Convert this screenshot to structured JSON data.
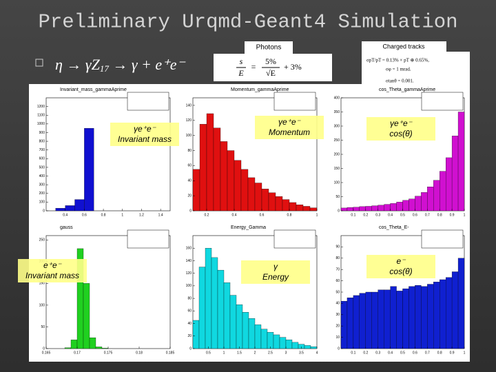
{
  "title": "Preliminary Urqmd-Geant4 Simulation",
  "bullet": {
    "formula": "η → γZ",
    "subscript": "17",
    "rest": " → γ + e⁺e⁻"
  },
  "photons": {
    "box": "Photons",
    "lhs_num": "s",
    "lhs_den": "E",
    "eq": "=",
    "t1_num": "5%",
    "t1_den": "√E",
    "t2": "+ 3%"
  },
  "charged": {
    "box": "Charged tracks",
    "lines": [
      "σpT/pT = 0.13% × pT ⊕ 0.65%,",
      "σφ = 1 mrad.",
      "σtanθ = 0.001."
    ]
  },
  "panels": [
    {
      "title": "Invariant_mass_gammaAprime",
      "color": "#1010d0",
      "label": [
        "γe⁺e⁻",
        "Invariant mass"
      ],
      "bins": [
        0.2,
        0.3,
        0.4,
        0.5,
        0.6,
        0.7,
        0.8,
        0.9,
        1.0,
        1.1,
        1.2,
        1.3,
        1.4,
        1.5
      ],
      "counts": [
        0,
        30,
        60,
        130,
        950,
        0,
        0,
        0,
        0,
        0,
        0,
        0,
        0
      ],
      "xticks": [
        0.4,
        0.6,
        0.8,
        1,
        1.2,
        1.4
      ],
      "ylim": [
        0,
        1300
      ],
      "yticks": [
        0,
        100,
        200,
        300,
        400,
        500,
        600,
        700,
        800,
        900,
        1000,
        1100,
        1200
      ]
    },
    {
      "title": "Momentum_gammaAprime",
      "color": "#e01010",
      "label": [
        "γe⁺e⁻",
        "Momentum"
      ],
      "bins": [
        0.1,
        0.15,
        0.2,
        0.25,
        0.3,
        0.35,
        0.4,
        0.45,
        0.5,
        0.55,
        0.6,
        0.65,
        0.7,
        0.75,
        0.8,
        0.85,
        0.9,
        0.95,
        1.0
      ],
      "counts": [
        55,
        115,
        129,
        110,
        92,
        80,
        67,
        55,
        44,
        37,
        29,
        24,
        19,
        15,
        11,
        8,
        6,
        4
      ],
      "xticks": [
        0.2,
        0.4,
        0.6,
        0.8,
        1
      ],
      "ylim": [
        0,
        150
      ],
      "yticks": [
        0,
        20,
        40,
        60,
        80,
        100,
        120,
        140
      ]
    },
    {
      "title": "cos_Theta_gammaAprime",
      "color": "#d010d0",
      "label": [
        "γe⁺e⁻",
        "cos(θ)"
      ],
      "bins": [
        0,
        0.05,
        0.1,
        0.15,
        0.2,
        0.25,
        0.3,
        0.35,
        0.4,
        0.45,
        0.5,
        0.55,
        0.6,
        0.65,
        0.7,
        0.75,
        0.8,
        0.85,
        0.9,
        0.95,
        1.0
      ],
      "counts": [
        10,
        12,
        13,
        15,
        16,
        18,
        20,
        23,
        26,
        31,
        37,
        42,
        52,
        65,
        85,
        108,
        140,
        188,
        265,
        350
      ],
      "xticks": [
        0.1,
        0.2,
        0.3,
        0.4,
        0.5,
        0.6,
        0.7,
        0.8,
        0.9,
        1
      ],
      "ylim": [
        0,
        400
      ],
      "yticks": [
        0,
        50,
        100,
        150,
        200,
        250,
        300,
        350,
        400
      ]
    },
    {
      "title": "gauss",
      "color": "#20d020",
      "label": [
        "e⁺e⁻",
        "Invariant mass"
      ],
      "bins": [
        0.165,
        0.166,
        0.167,
        0.168,
        0.169,
        0.17,
        0.171,
        0.172,
        0.173,
        0.174,
        0.175,
        0.176,
        0.177,
        0.178,
        0.179,
        0.18,
        0.181,
        0.182,
        0.183,
        0.184,
        0.185
      ],
      "counts": [
        0,
        0,
        0,
        2,
        20,
        230,
        150,
        25,
        4,
        1,
        0,
        0,
        0,
        0,
        0,
        0,
        0,
        0,
        0,
        0
      ],
      "xticks": [
        0.165,
        0.17,
        0.175,
        0.18,
        0.185
      ],
      "ylim": [
        0,
        260
      ],
      "yticks": [
        0,
        50,
        100,
        150,
        200,
        250
      ]
    },
    {
      "title": "Energy_Gamma",
      "color": "#10d8e0",
      "label": [
        "γ",
        "Energy"
      ],
      "bins": [
        0,
        0.2,
        0.4,
        0.6,
        0.8,
        1,
        1.2,
        1.4,
        1.6,
        1.8,
        2,
        2.2,
        2.4,
        2.6,
        2.8,
        3,
        3.2,
        3.4,
        3.6,
        3.8,
        4
      ],
      "counts": [
        45,
        130,
        160,
        145,
        125,
        105,
        85,
        70,
        58,
        48,
        38,
        31,
        26,
        22,
        18,
        14,
        10,
        7,
        5,
        3
      ],
      "xticks": [
        0.5,
        1,
        1.5,
        2,
        2.5,
        3,
        3.5,
        4
      ],
      "ylim": [
        0,
        180
      ],
      "yticks": [
        0,
        20,
        40,
        60,
        80,
        100,
        120,
        140,
        160
      ]
    },
    {
      "title": "cos_Theta_E-",
      "color": "#1020d0",
      "label": [
        "e⁻",
        "cos(θ)"
      ],
      "bins": [
        0,
        0.05,
        0.1,
        0.15,
        0.2,
        0.25,
        0.3,
        0.35,
        0.4,
        0.45,
        0.5,
        0.55,
        0.6,
        0.65,
        0.7,
        0.75,
        0.8,
        0.85,
        0.9,
        0.95,
        1.0
      ],
      "counts": [
        42,
        45,
        47,
        49,
        50,
        50,
        52,
        52,
        55,
        51,
        53,
        55,
        56,
        55,
        57,
        59,
        61,
        63,
        68,
        80
      ],
      "xticks": [
        0.1,
        0.2,
        0.3,
        0.4,
        0.5,
        0.6,
        0.7,
        0.8,
        0.9,
        1
      ],
      "ylim": [
        0,
        100
      ],
      "yticks": [
        0,
        10,
        20,
        30,
        40,
        50,
        60,
        70,
        80,
        90
      ]
    }
  ]
}
